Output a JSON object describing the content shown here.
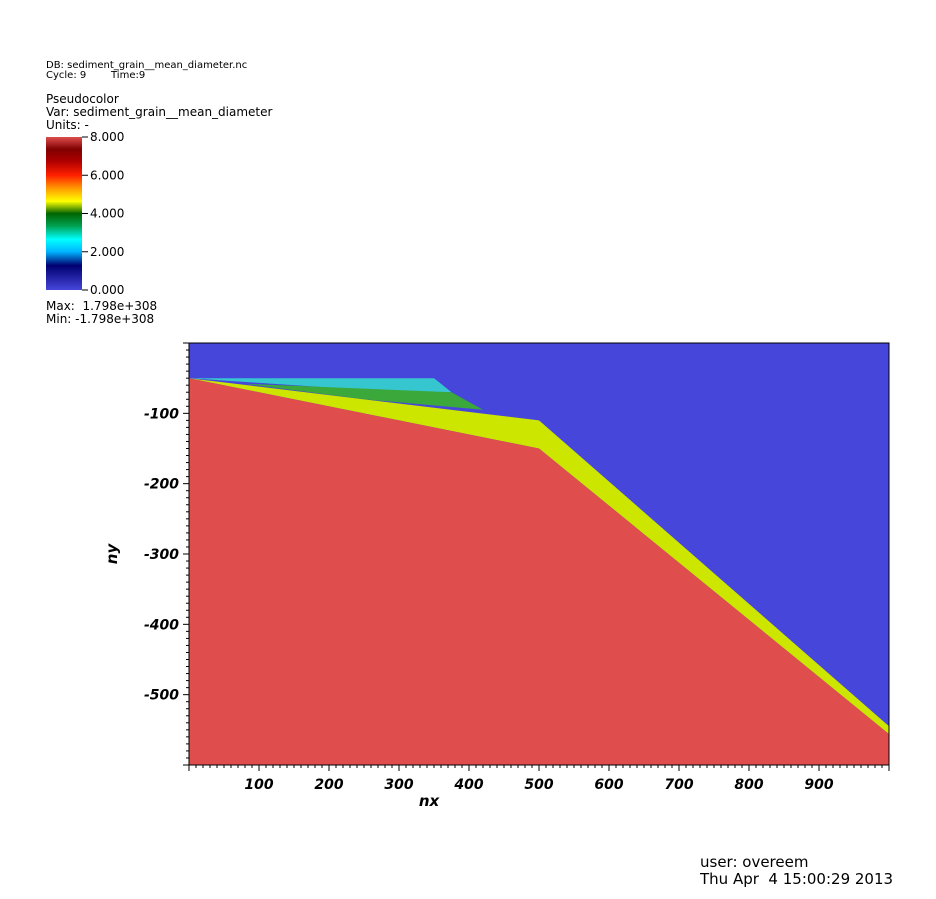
{
  "header": {
    "db": "DB: sediment_grain__mean_diameter.nc",
    "cycle": "Cycle: 9",
    "time": "Time:9"
  },
  "legend": {
    "plot_name": "Pseudocolor",
    "var": "Var: sediment_grain__mean_diameter",
    "units": "Units: -",
    "ticks": [
      "8.000",
      "6.000",
      "4.000",
      "2.000",
      "0.000"
    ],
    "range": [
      0,
      8
    ],
    "max": "Max:  1.798e+308",
    "min": "Min: -1.798e+308"
  },
  "footer": {
    "user": "user: overeem",
    "date": "Thu Apr  4 15:00:29 2013"
  },
  "colors": {
    "deep_water": "#4646da",
    "sediment_coarse": "#df4d4d",
    "sand": "#cce600",
    "green": "#3aa83a",
    "cyan": "#36c6d0"
  },
  "chart_data": {
    "type": "heatmap",
    "xlabel": "nx",
    "ylabel": "ny",
    "xlim": [
      0,
      1000
    ],
    "ylim": [
      -600,
      0
    ],
    "x_ticks": [
      "100",
      "200",
      "300",
      "400",
      "500",
      "600",
      "700",
      "800",
      "900"
    ],
    "y_ticks": [
      "-100",
      "-200",
      "-300",
      "-400",
      "-500"
    ],
    "background_value": 0.0,
    "regions": [
      {
        "value": 0.0,
        "color": "#4646da",
        "polygon": [
          [
            0,
            0
          ],
          [
            1000,
            0
          ],
          [
            1000,
            -600
          ],
          [
            0,
            -600
          ]
        ]
      },
      {
        "value": 4.5,
        "color": "#cce600",
        "polygon": [
          [
            0,
            -50
          ],
          [
            500,
            -110
          ],
          [
            1000,
            -545
          ],
          [
            1000,
            -556
          ],
          [
            500,
            -150
          ]
        ]
      },
      {
        "value": 2.5,
        "color": "#36c6d0",
        "polygon": [
          [
            0,
            -50
          ],
          [
            350,
            -50
          ],
          [
            375,
            -70
          ],
          [
            300,
            -70
          ]
        ]
      },
      {
        "value": 3.3,
        "color": "#3aa83a",
        "polygon": [
          [
            80,
            -58
          ],
          [
            375,
            -70
          ],
          [
            420,
            -95
          ],
          [
            250,
            -80
          ]
        ]
      },
      {
        "value": 7.5,
        "color": "#df4d4d",
        "polygon": [
          [
            0,
            -50
          ],
          [
            500,
            -150
          ],
          [
            1000,
            -556
          ],
          [
            1000,
            -600
          ],
          [
            0,
            -600
          ]
        ]
      }
    ]
  }
}
